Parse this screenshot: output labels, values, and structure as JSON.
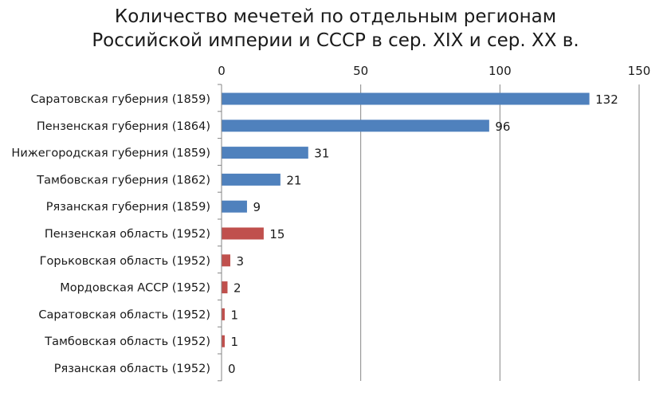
{
  "chart_data": {
    "type": "bar",
    "orientation": "horizontal",
    "title_lines": [
      "Количество мечетей по отдельным регионам",
      "Российской империи и СССР в сер. XIX и сер. XX в."
    ],
    "categories": [
      "Саратовская губерния (1859)",
      "Пензенская губерния (1864)",
      "Нижегородская губерния (1859)",
      "Тамбовская губерния (1862)",
      "Рязанская губерния (1859)",
      "Пензенская область (1952)",
      "Горьковская область (1952)",
      "Мордовская АССР (1952)",
      "Саратовская область (1952)",
      "Тамбовская область (1952)",
      "Рязанская область (1952)"
    ],
    "values": [
      132,
      96,
      31,
      21,
      9,
      15,
      3,
      2,
      1,
      1,
      0
    ],
    "bar_colors": [
      "#4f81bd",
      "#4f81bd",
      "#4f81bd",
      "#4f81bd",
      "#4f81bd",
      "#c0504d",
      "#c0504d",
      "#c0504d",
      "#c0504d",
      "#c0504d",
      "#c0504d"
    ],
    "xlim": [
      0,
      150
    ],
    "x_ticks": [
      0,
      50,
      100,
      150
    ],
    "x_axis_position": "top",
    "grid": true,
    "data_labels": true
  }
}
